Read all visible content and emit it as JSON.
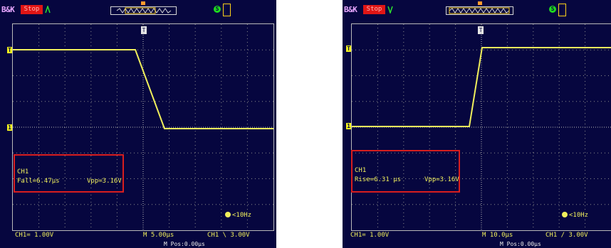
{
  "colors": {
    "screen": "#06063f",
    "trace": "#f0ef5c",
    "grid": "#b9b9b9",
    "highlight": "#d81e1e",
    "run_badge": "#e01515"
  },
  "icons": [
    "trigger-icon",
    "memory-map-icon",
    "trigger-position-icon",
    "network-status-icon",
    "usb-icon"
  ],
  "screens": [
    {
      "brand": "B&K",
      "run_state": "Stop",
      "measurements": {
        "channel": "CH1",
        "type_value": "Fall=6.47μs",
        "vpp": "Vpp=3.16V"
      },
      "freq_counter": "<10Hz",
      "status_bottom": {
        "ch_scale": "CH1= 1.00V",
        "timebase": "M 5.00μs",
        "trigger": "CH1 \\ 3.00V",
        "mpos": "M Pos:0.00μs"
      }
    },
    {
      "brand": "B&K",
      "run_state": "Stop",
      "measurements": {
        "channel": "CH1",
        "type_value": "Rise=6.31 μs",
        "vpp": "Vpp=3.16V"
      },
      "freq_counter": "<10Hz",
      "status_bottom": {
        "ch_scale": "CH1= 1.00V",
        "timebase": "M 10.0μs",
        "trigger": "CH1 / 3.00V",
        "mpos": "M Pos:0.00μs"
      }
    }
  ]
}
